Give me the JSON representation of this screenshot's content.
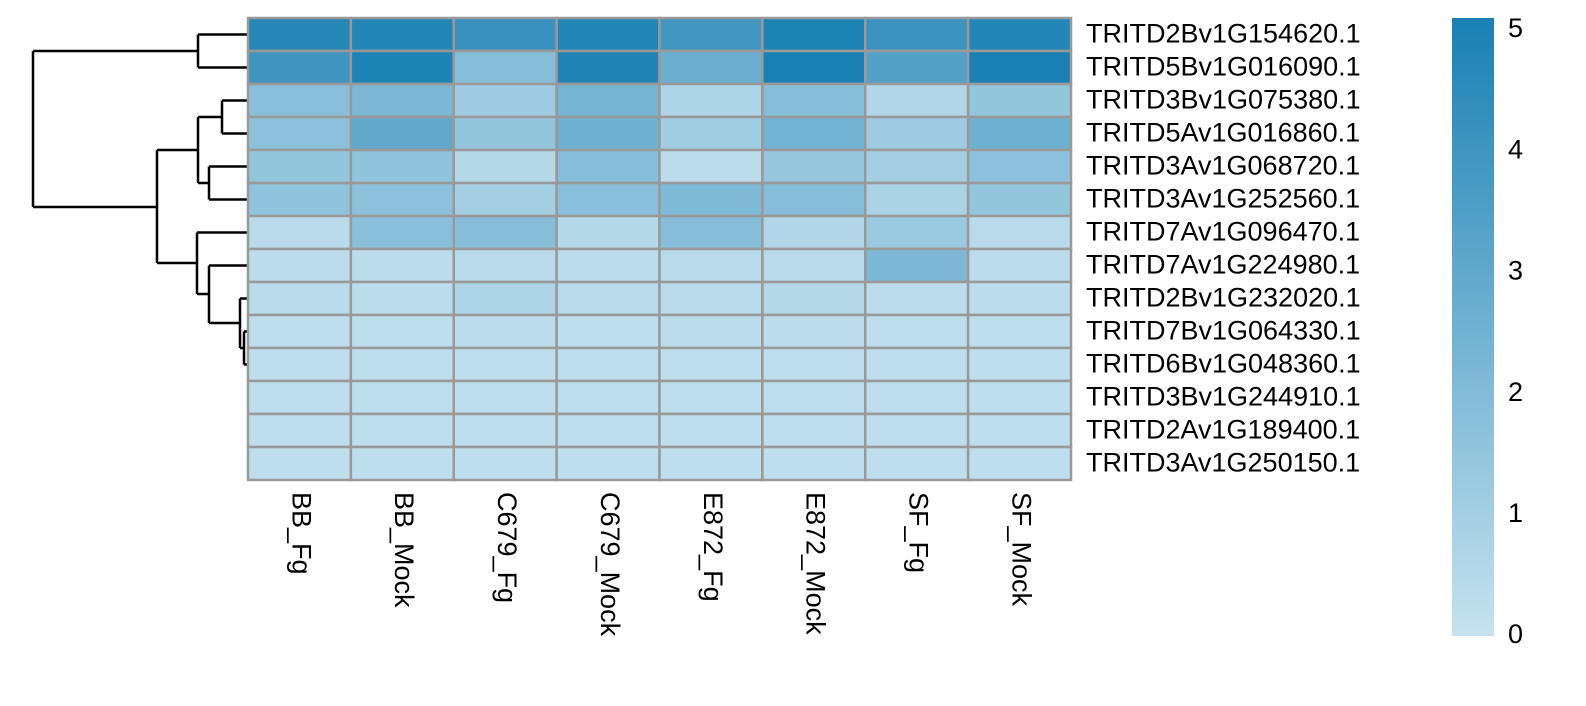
{
  "chart_data": {
    "type": "heatmap",
    "rows": [
      "TRITD2Bv1G154620.1",
      "TRITD5Bv1G016090.1",
      "TRITD3Bv1G075380.1",
      "TRITD5Av1G016860.1",
      "TRITD3Av1G068720.1",
      "TRITD3Av1G252560.1",
      "TRITD7Av1G096470.1",
      "TRITD7Av1G224980.1",
      "TRITD2Bv1G232020.1",
      "TRITD7Bv1G064330.1",
      "TRITD6Bv1G048360.1",
      "TRITD3Bv1G244910.1",
      "TRITD2Av1G189400.1",
      "TRITD3Av1G250150.1"
    ],
    "columns": [
      "BB_Fg",
      "BB_Mock",
      "C679_Fg",
      "C679_Mock",
      "E872_Fg",
      "E872_Mock",
      "SF_Fg",
      "SF_Mock"
    ],
    "values": [
      [
        4.7,
        4.8,
        4.2,
        4.8,
        3.9,
        5.0,
        4.1,
        4.8
      ],
      [
        4.0,
        5.0,
        1.9,
        4.9,
        2.7,
        5.1,
        3.4,
        5.1
      ],
      [
        1.8,
        2.2,
        1.2,
        2.4,
        0.7,
        1.9,
        0.6,
        1.5
      ],
      [
        1.7,
        3.0,
        1.5,
        2.6,
        1.1,
        2.5,
        1.2,
        2.6
      ],
      [
        1.5,
        1.6,
        0.5,
        1.9,
        0.3,
        1.4,
        1.0,
        1.7
      ],
      [
        1.6,
        1.7,
        1.0,
        1.8,
        2.1,
        1.9,
        0.8,
        1.5
      ],
      [
        0.4,
        1.8,
        1.9,
        0.5,
        1.9,
        0.6,
        1.3,
        0.4
      ],
      [
        0.3,
        0.3,
        0.4,
        0.3,
        0.4,
        0.4,
        2.2,
        0.3
      ],
      [
        0.4,
        0.3,
        0.7,
        0.4,
        0.4,
        0.5,
        0.3,
        0.3
      ],
      [
        0.2,
        0.2,
        0.3,
        0.2,
        0.3,
        0.3,
        0.2,
        0.2
      ],
      [
        0.2,
        0.2,
        0.2,
        0.2,
        0.2,
        0.2,
        0.2,
        0.2
      ],
      [
        0.2,
        0.2,
        0.2,
        0.2,
        0.2,
        0.2,
        0.2,
        0.2
      ],
      [
        0.2,
        0.2,
        0.2,
        0.2,
        0.2,
        0.2,
        0.2,
        0.2
      ],
      [
        0.2,
        0.2,
        0.2,
        0.2,
        0.2,
        0.2,
        0.2,
        0.2
      ]
    ],
    "clim": [
      0,
      5.1
    ],
    "cticks": [
      0,
      1,
      2,
      3,
      4,
      5
    ],
    "colors": [
      "#c6e2ef",
      "#1a80b3"
    ],
    "border": "#999999"
  }
}
